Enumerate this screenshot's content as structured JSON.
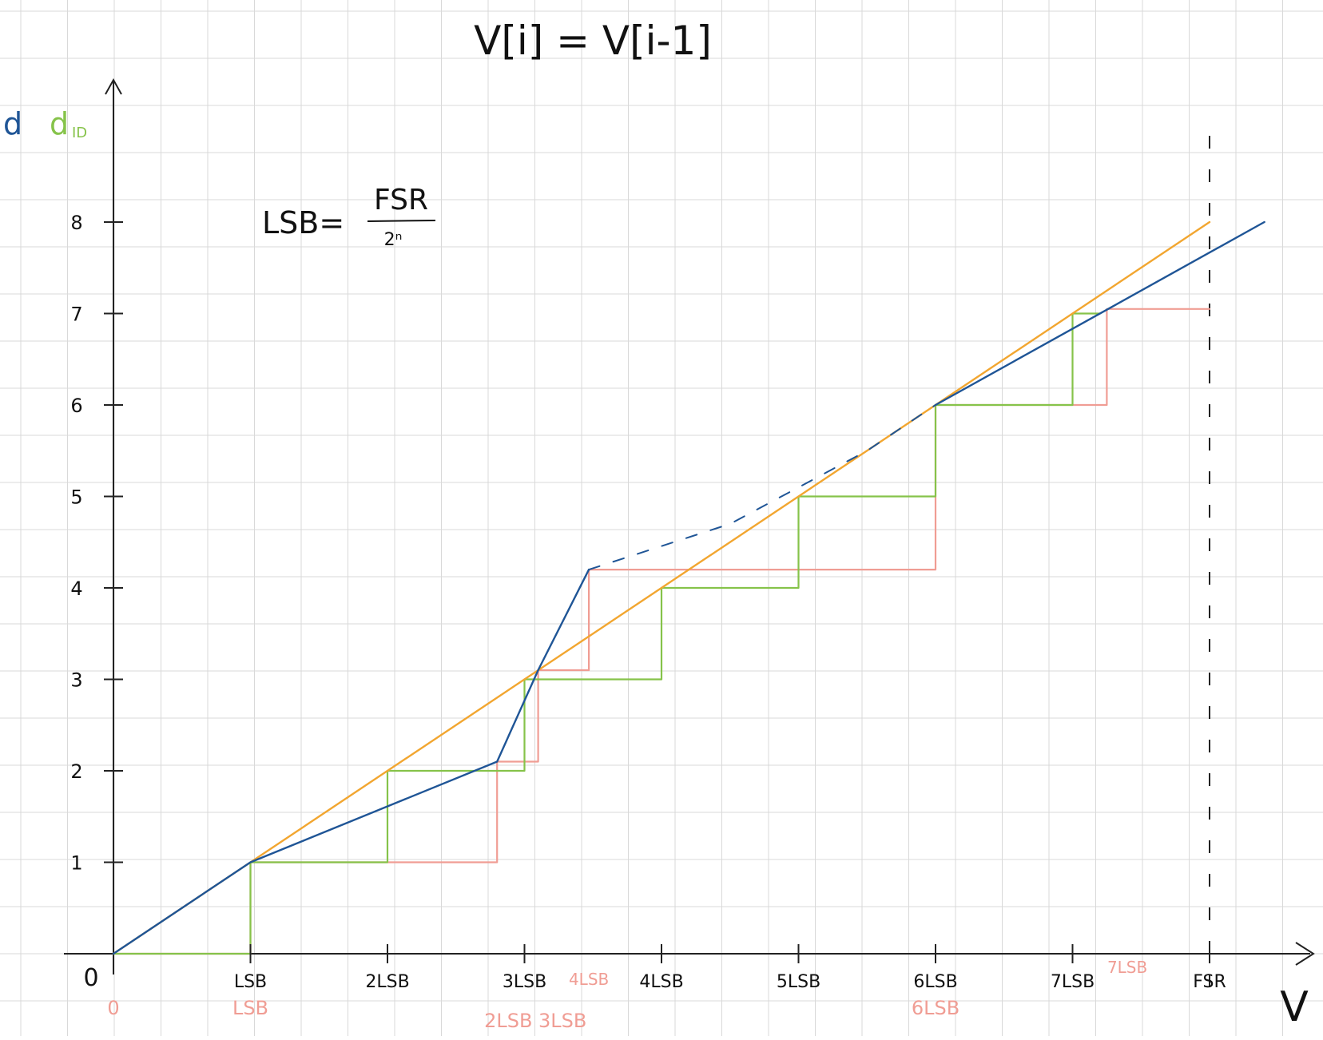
{
  "title": "V[i] = V[i-1]",
  "formula": {
    "lhs": "LSB=",
    "numerator": "FSR",
    "denominator": "2ⁿ"
  },
  "y_axis_labels": {
    "d": "d",
    "d_id": "d",
    "d_id_sub": "ID"
  },
  "x_axis_label": "V",
  "colors": {
    "ideal": "#f2a630",
    "actual": "#1f5596",
    "green": "#86c34a",
    "red": "#f09d94",
    "axis": "#222222",
    "grid": "#d9d9d9"
  },
  "y_ticks": [
    "1",
    "2",
    "3",
    "4",
    "5",
    "6",
    "7",
    "8"
  ],
  "x_ticks": [
    {
      "label": "LSB",
      "v": 1
    },
    {
      "label": "2LSB",
      "v": 2
    },
    {
      "label": "3LSB",
      "v": 3
    },
    {
      "label": "4LSB",
      "v": 4
    },
    {
      "label": "5LSB",
      "v": 5
    },
    {
      "label": "6LSB",
      "v": 6
    },
    {
      "label": "7LSB",
      "v": 7
    },
    {
      "label": "FSR",
      "v": 8
    }
  ],
  "origin_label": "0",
  "red_labels": [
    {
      "label": "0",
      "v": 0,
      "row": 2
    },
    {
      "label": "LSB",
      "v": 1,
      "row": 2
    },
    {
      "label": "4LSB",
      "v": 3.47,
      "row": 1
    },
    {
      "label": "2LSB 3LSB",
      "v": 3.08,
      "row": 3
    },
    {
      "label": "6LSB",
      "v": 6,
      "row": 2
    },
    {
      "label": "7LSB",
      "v": 7.4,
      "row": 0
    }
  ],
  "chart_data": {
    "type": "line",
    "x_unit": "LSB",
    "y_unit": "code",
    "xlim": [
      0,
      8
    ],
    "ylim": [
      0,
      8
    ],
    "series": [
      {
        "key": "ideal",
        "points": [
          [
            0,
            0
          ],
          [
            8,
            8
          ]
        ]
      },
      {
        "key": "actual",
        "points": [
          [
            0,
            0
          ],
          [
            1,
            1
          ],
          [
            2.8,
            2.1
          ],
          [
            3.1,
            3.1
          ],
          [
            3.47,
            4.2
          ]
        ]
      },
      {
        "key": "actual_dashed",
        "points": [
          [
            3.47,
            4.2
          ],
          [
            4.5,
            4.7
          ],
          [
            5.5,
            5.5
          ],
          [
            6,
            6
          ]
        ]
      },
      {
        "key": "actual_tail",
        "points": [
          [
            6,
            6
          ],
          [
            8.4,
            8
          ]
        ]
      },
      {
        "key": "green_staircase",
        "points": [
          [
            0,
            0
          ],
          [
            1,
            0
          ],
          [
            1,
            1
          ],
          [
            2,
            1
          ],
          [
            2,
            2
          ],
          [
            3,
            2
          ],
          [
            3,
            3
          ],
          [
            4,
            3
          ],
          [
            4,
            4
          ],
          [
            5,
            4
          ],
          [
            5,
            5
          ],
          [
            6,
            5
          ],
          [
            6,
            6
          ],
          [
            7,
            6
          ],
          [
            7,
            7
          ],
          [
            7.2,
            7
          ]
        ]
      },
      {
        "key": "red_staircase",
        "points": [
          [
            0,
            0
          ],
          [
            1,
            0
          ],
          [
            1,
            1
          ],
          [
            2.8,
            1
          ],
          [
            2.8,
            2.1
          ],
          [
            3.1,
            2.1
          ],
          [
            3.1,
            3.1
          ],
          [
            3.47,
            3.1
          ],
          [
            3.47,
            4.2
          ],
          [
            6,
            4.2
          ],
          [
            6,
            6
          ],
          [
            7.25,
            6
          ],
          [
            7.25,
            7.05
          ],
          [
            8,
            7.05
          ]
        ]
      }
    ],
    "fsr_line_x": 8
  }
}
